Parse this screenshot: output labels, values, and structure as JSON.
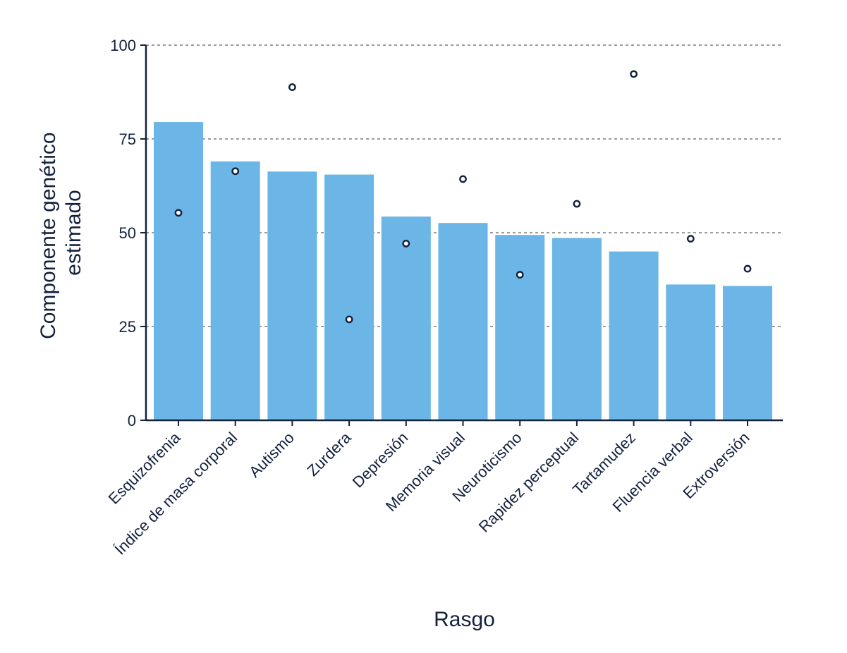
{
  "chart_data": {
    "type": "bar",
    "title": "",
    "xlabel": "Rasgo",
    "ylabel": [
      "Componente genético",
      "estimado"
    ],
    "ylim": [
      0,
      100
    ],
    "yticks": [
      "0",
      "25",
      "50",
      "75",
      "100"
    ],
    "grid": "horizontal dashed",
    "categories": [
      "Esquizofrenia",
      "Índice de masa corporal",
      "Autismo",
      "Zurdera",
      "Depresión",
      "Memoria visual",
      "Neuroticismo",
      "Rapidez perceptual",
      "Tartamudez",
      "Fluencia verbal",
      "Extroversión"
    ],
    "series": [
      {
        "values": [
          79.5,
          69,
          66.3,
          65.5,
          54.3,
          52.6,
          49.4,
          48.6,
          45,
          36.2,
          35.8
        ]
      },
      {
        "values": [
          55.3,
          66.4,
          88.8,
          26.9,
          47.1,
          64.3,
          38.8,
          57.7,
          92.3,
          48.4,
          40.4
        ]
      }
    ]
  },
  "colors": {
    "bar": "#6bb6e6",
    "axis": "#14213d",
    "grid": "#3a3a3a",
    "marker_stroke": "#14213d",
    "background": "#ffffff"
  }
}
